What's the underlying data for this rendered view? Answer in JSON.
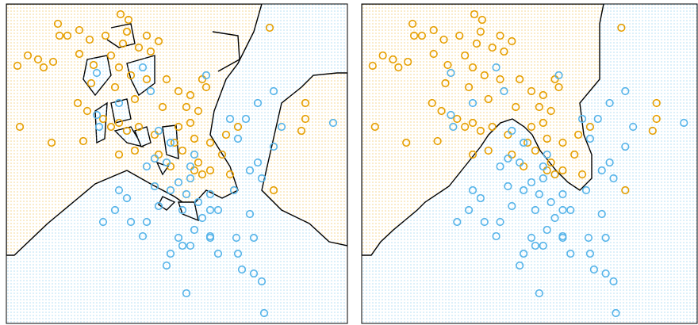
{
  "chart_data": [
    {
      "type": "scatter",
      "xlim": [
        0,
        430
      ],
      "ylim": [
        0,
        400
      ],
      "series": [
        {
          "color": "#E69F00",
          "x": [
            144,
            154,
            65,
            77,
            27,
            40,
            14,
            47,
            59,
            92,
            105,
            125,
            147,
            152,
            177,
            167,
            182,
            192,
            92,
            110,
            132,
            142,
            157,
            177,
            202,
            217,
            232,
            252,
            242,
            227,
            90,
            102,
            122,
            142,
            152,
            167,
            187,
            217,
            232,
            237,
            257,
            277,
            222,
            242,
            257,
            272,
            282,
            292,
            17,
            57,
            97,
            142,
            162,
            207,
            332,
            337,
            377,
            377,
            372,
            67,
            107,
            162,
            197,
            247,
            132,
            137,
            247,
            192,
            212,
            237
          ],
          "values": [
            387,
            380,
            375,
            360,
            335,
            330,
            322,
            320,
            327,
            367,
            355,
            360,
            350,
            365,
            360,
            345,
            340,
            353,
            337,
            323,
            335,
            320,
            310,
            305,
            305,
            290,
            285,
            295,
            265,
            270,
            275,
            265,
            255,
            250,
            240,
            245,
            235,
            245,
            250,
            230,
            225,
            235,
            215,
            200,
            190,
            210,
            185,
            245,
            245,
            225,
            227,
            210,
            215,
            195,
            370,
            165,
            275,
            255,
            240,
            360,
            300,
            280,
            270,
            305,
            245,
            295,
            185,
            210,
            225,
            190
          ]
        },
        {
          "color": "#56B4E9",
          "x": [
            114,
            172,
            182,
            142,
            114,
            117,
            192,
            207,
            187,
            177,
            202,
            237,
            232,
            187,
            207,
            227,
            242,
            257,
            267,
            247,
            192,
            152,
            177,
            237,
            257,
            267,
            217,
            222,
            232,
            202,
            257,
            290,
            292,
            297,
            312,
            322,
            307,
            312,
            325,
            317,
            302,
            292,
            337,
            337,
            347,
            317,
            307,
            137,
            157,
            122,
            142,
            412,
            207,
            172,
            227,
            287,
            222,
            282,
            322,
            232,
            252,
            257,
            217
          ],
          "values": [
            313,
            320,
            290,
            275,
            260,
            245,
            240,
            225,
            205,
            195,
            200,
            210,
            180,
            170,
            165,
            160,
            150,
            140,
            140,
            130,
            145,
            155,
            125,
            115,
            105,
            85,
            105,
            95,
            95,
            70,
            107,
            105,
            85,
            65,
            60,
            50,
            135,
            105,
            10,
            275,
            255,
            230,
            290,
            220,
            245,
            200,
            190,
            140,
            125,
            125,
            165,
            250,
            85,
            107,
            35,
            165,
            140,
            255,
            180,
            195,
            310,
            160,
            175
          ]
        }
      ]
    },
    {
      "type": "scatter",
      "xlim": [
        0,
        430
      ],
      "ylim": [
        0,
        400
      ],
      "series": [
        {
          "color": "#E69F00",
          "x": [
            144,
            154,
            65,
            77,
            27,
            40,
            14,
            47,
            59,
            92,
            105,
            125,
            147,
            152,
            177,
            167,
            182,
            192,
            92,
            110,
            132,
            142,
            157,
            177,
            202,
            217,
            232,
            252,
            242,
            227,
            90,
            102,
            122,
            142,
            152,
            167,
            187,
            217,
            232,
            237,
            257,
            277,
            222,
            242,
            257,
            272,
            282,
            292,
            17,
            57,
            97,
            142,
            162,
            207,
            332,
            337,
            377,
            377,
            372,
            67,
            107,
            162,
            197,
            247,
            132,
            137,
            247,
            192,
            212,
            237
          ],
          "values": [
            387,
            380,
            375,
            360,
            335,
            330,
            322,
            320,
            327,
            367,
            355,
            360,
            350,
            365,
            360,
            345,
            340,
            353,
            337,
            323,
            335,
            320,
            310,
            305,
            305,
            290,
            285,
            295,
            265,
            270,
            275,
            265,
            255,
            250,
            240,
            245,
            235,
            245,
            250,
            230,
            225,
            235,
            215,
            200,
            190,
            210,
            185,
            245,
            245,
            225,
            227,
            210,
            215,
            195,
            370,
            165,
            275,
            255,
            240,
            360,
            300,
            280,
            270,
            305,
            245,
            295,
            185,
            210,
            225,
            190
          ]
        },
        {
          "color": "#56B4E9",
          "x": [
            114,
            172,
            182,
            142,
            114,
            117,
            192,
            207,
            187,
            177,
            202,
            237,
            232,
            187,
            207,
            227,
            242,
            257,
            267,
            247,
            192,
            152,
            177,
            237,
            257,
            267,
            217,
            222,
            232,
            202,
            257,
            290,
            292,
            297,
            312,
            322,
            307,
            312,
            325,
            317,
            302,
            292,
            337,
            337,
            347,
            317,
            307,
            137,
            157,
            122,
            142,
            412,
            207,
            172,
            227,
            287,
            222,
            282,
            322,
            232,
            252,
            257,
            217
          ],
          "values": [
            313,
            320,
            290,
            275,
            260,
            245,
            240,
            225,
            205,
            195,
            200,
            210,
            180,
            170,
            165,
            160,
            150,
            140,
            140,
            130,
            145,
            155,
            125,
            115,
            105,
            85,
            105,
            95,
            95,
            70,
            107,
            105,
            85,
            65,
            60,
            50,
            135,
            105,
            10,
            275,
            255,
            230,
            290,
            220,
            245,
            200,
            190,
            140,
            125,
            125,
            165,
            250,
            85,
            107,
            35,
            165,
            140,
            255,
            180,
            195,
            310,
            160,
            175
          ]
        }
      ]
    }
  ]
}
